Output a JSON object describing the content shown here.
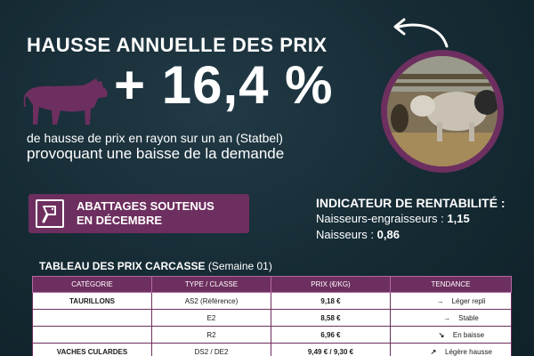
{
  "header": {
    "title": "HAUSSE ANNUELLE DES PRIX",
    "figure": "+ 16,4 %",
    "subtitle_line1": "de hausse de prix en rayon sur un an (Statbel)",
    "subtitle_line2": "provoquant une baisse de la demande"
  },
  "banner": {
    "line1": "ABATTAGES SOUTENUS",
    "line2": "EN DÉCEMBRE",
    "icon": "cleaver-icon"
  },
  "indicator": {
    "title": "INDICATEUR DE RENTABILITÉ :",
    "rows": [
      {
        "label": "Naisseurs-engraisseurs : ",
        "value": "1,15"
      },
      {
        "label": "Naisseurs : ",
        "value": "0,86"
      }
    ]
  },
  "table": {
    "title": "TABLEAU DES PRIX CARCASSE",
    "week": "(Semaine 01)",
    "headers": [
      "CATÉGORIE",
      "TYPE / CLASSE",
      "PRIX (€/KG)",
      "TENDANCE"
    ],
    "rows": [
      {
        "category": "TAURILLONS",
        "type": "AS2 (Référence)",
        "price": "9,18 €",
        "trend": "Léger repli",
        "arrow": "→"
      },
      {
        "category": "",
        "type": "E2",
        "price": "8,58 €",
        "trend": "Stable",
        "arrow": "→"
      },
      {
        "category": "",
        "type": "R2",
        "price": "6,96 €",
        "trend": "En baisse",
        "arrow": "↘"
      },
      {
        "category": "VACHES CULARDES",
        "type": "DS2 / DE2",
        "price": "9,49 € / 9,30 €",
        "trend": "Légère hausse",
        "arrow": "↗"
      }
    ]
  },
  "colors": {
    "accent": "#6d2f5f",
    "background": "#152a33"
  }
}
